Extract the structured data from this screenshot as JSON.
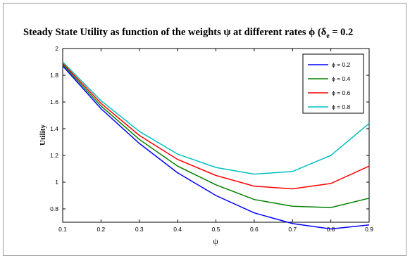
{
  "chart_data": {
    "type": "line",
    "title_main": "Steady State Utility as function of the weights ψ at different rates ϕ (δ",
    "title_sub": "e",
    "title_tail": " = 0.2",
    "xlabel": "ψ",
    "ylabel": "Utility",
    "x": [
      0.1,
      0.2,
      0.3,
      0.4,
      0.5,
      0.6,
      0.7,
      0.8,
      0.9
    ],
    "xticks": [
      "0.1",
      "0.2",
      "0.3",
      "0.4",
      "0.5",
      "0.6",
      "0.7",
      "0.8",
      "0.9"
    ],
    "yticks": [
      "0.8",
      "1",
      "1.2",
      "1.4",
      "1.6",
      "1.8",
      "2"
    ],
    "xlim": [
      0.1,
      0.9
    ],
    "ylim": [
      0.7,
      2.0
    ],
    "legend_position": "top-right",
    "series": [
      {
        "name": "ϕ = 0.2",
        "color": "#0000ff",
        "values": [
          1.87,
          1.55,
          1.29,
          1.07,
          0.9,
          0.77,
          0.69,
          0.65,
          0.68
        ]
      },
      {
        "name": "ϕ = 0.4",
        "color": "#008000",
        "values": [
          1.88,
          1.57,
          1.32,
          1.12,
          0.98,
          0.87,
          0.82,
          0.81,
          0.88
        ]
      },
      {
        "name": "ϕ = 0.6",
        "color": "#ff0000",
        "values": [
          1.89,
          1.59,
          1.35,
          1.17,
          1.05,
          0.97,
          0.95,
          0.99,
          1.12
        ]
      },
      {
        "name": "ϕ = 0.8",
        "color": "#00bfbf",
        "values": [
          1.9,
          1.61,
          1.38,
          1.21,
          1.11,
          1.06,
          1.08,
          1.2,
          1.44
        ]
      }
    ]
  }
}
